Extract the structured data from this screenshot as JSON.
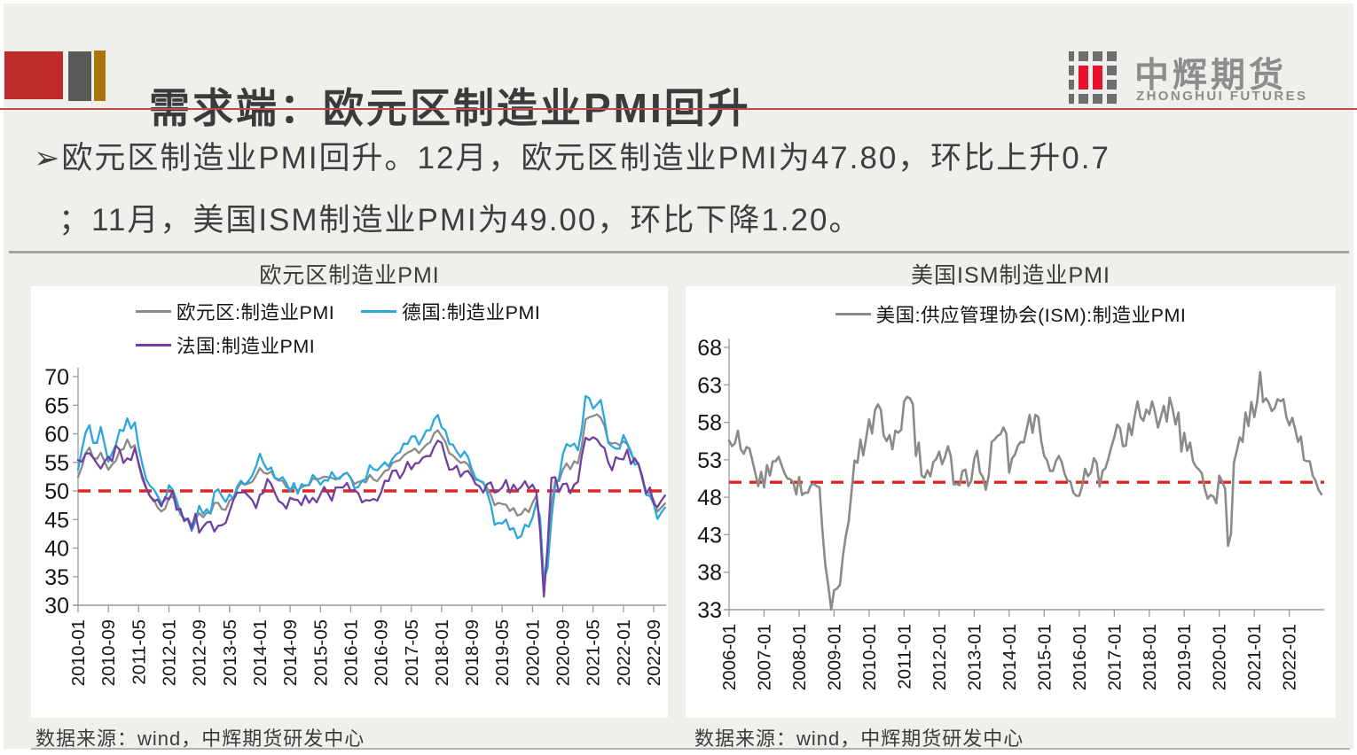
{
  "header": {
    "title": "需求端：欧元区制造业PMI回升",
    "logo_cn": "中辉期货",
    "logo_en": "ZHONGHUI FUTURES"
  },
  "bullet": {
    "line1": "➢欧元区制造业PMI回升。12月，欧元区制造业PMI为47.80，环比上升0.7",
    "line2": "；11月，美国ISM制造业PMI为49.00，环比下降1.20。"
  },
  "colors": {
    "deco_red": "#be2b2b",
    "deco_gray": "#595959",
    "deco_gold": "#a8760e",
    "header_rule_red": "#bf4a4a",
    "divider_gray": "#a3a3a3",
    "logo_gray": "#6e6e6e",
    "logo_red": "#e8112d",
    "axis_gray": "#9a9a9a",
    "baseline_red": "#e02222"
  },
  "chart_data": [
    {
      "type": "line",
      "title": "欧元区制造业PMI",
      "source": "数据来源：wind，中辉期货研发中心",
      "legend_position": "top",
      "grid": false,
      "ylim": [
        30,
        70
      ],
      "ytick_step": 5,
      "x_start": "2010-01",
      "x_freq": "monthly",
      "x_ticks": [
        "2010-01",
        "2010-09",
        "2011-05",
        "2012-01",
        "2012-09",
        "2013-05",
        "2014-01",
        "2014-09",
        "2015-05",
        "2016-01",
        "2016-09",
        "2017-05",
        "2018-01",
        "2018-09",
        "2019-05",
        "2020-01",
        "2020-09",
        "2021-05",
        "2022-01",
        "2022-09"
      ],
      "x_tick_every": 8,
      "baseline_value": 50,
      "baseline_color": "#e02222",
      "series": [
        {
          "name": "欧元区:制造业PMI",
          "color": "#8a8a8a",
          "values": [
            52.4,
            54.2,
            56.6,
            57.6,
            55.8,
            55.6,
            56.7,
            55.1,
            53.7,
            54.6,
            55.3,
            57.1,
            57.3,
            59.0,
            57.5,
            58.0,
            54.6,
            52.0,
            50.4,
            49.0,
            48.5,
            47.1,
            46.4,
            46.9,
            48.8,
            49.0,
            47.7,
            45.9,
            45.1,
            45.1,
            44.0,
            45.1,
            46.1,
            45.4,
            46.2,
            46.1,
            47.9,
            47.9,
            46.8,
            46.7,
            48.3,
            48.8,
            50.3,
            51.4,
            51.1,
            51.3,
            51.6,
            52.7,
            54.0,
            53.2,
            53.0,
            53.4,
            52.2,
            51.8,
            51.8,
            50.7,
            50.3,
            50.6,
            50.1,
            50.6,
            51.0,
            51.0,
            52.2,
            52.0,
            52.2,
            52.5,
            52.4,
            52.3,
            52.0,
            52.3,
            52.8,
            53.2,
            52.3,
            51.2,
            51.6,
            51.7,
            51.5,
            52.8,
            52.0,
            51.7,
            52.6,
            53.5,
            53.7,
            54.9,
            55.2,
            55.4,
            56.2,
            56.7,
            57.0,
            57.4,
            56.6,
            57.4,
            58.1,
            58.5,
            60.1,
            60.6,
            59.6,
            58.6,
            56.6,
            56.2,
            55.5,
            54.9,
            55.1,
            54.6,
            53.2,
            52.0,
            51.8,
            51.4,
            50.5,
            49.3,
            47.5,
            47.9,
            47.7,
            47.6,
            46.5,
            47.0,
            45.7,
            45.9,
            46.9,
            46.3,
            47.9,
            49.2,
            44.5,
            33.4,
            39.4,
            47.4,
            51.8,
            51.7,
            53.7,
            54.8,
            53.8,
            55.2,
            54.8,
            57.9,
            62.5,
            62.9,
            63.1,
            63.4,
            62.8,
            61.4,
            58.6,
            58.3,
            58.4,
            58.0,
            58.7,
            58.2,
            56.5,
            55.5,
            54.6,
            52.1,
            49.8,
            49.6,
            48.4,
            46.4,
            47.1,
            47.8
          ]
        },
        {
          "name": "德国:制造业PMI",
          "color": "#2ba7dd",
          "values": [
            53.7,
            57.2,
            60.2,
            61.5,
            58.4,
            58.4,
            61.2,
            58.2,
            55.1,
            56.6,
            58.1,
            60.7,
            60.5,
            62.7,
            60.9,
            62.0,
            57.7,
            54.6,
            52.0,
            50.9,
            50.3,
            49.1,
            47.9,
            48.4,
            51.0,
            50.2,
            48.4,
            46.2,
            45.2,
            45.0,
            43.0,
            44.7,
            47.4,
            46.0,
            46.8,
            46.0,
            49.8,
            50.3,
            49.0,
            48.1,
            49.4,
            48.6,
            50.7,
            51.8,
            51.1,
            51.7,
            52.7,
            54.3,
            56.5,
            54.8,
            53.7,
            54.1,
            52.3,
            52.0,
            52.4,
            51.4,
            49.9,
            51.4,
            49.5,
            51.2,
            50.9,
            51.1,
            52.8,
            52.1,
            51.1,
            51.9,
            51.8,
            53.3,
            52.3,
            52.1,
            52.9,
            53.2,
            52.3,
            50.5,
            50.7,
            51.8,
            52.1,
            54.5,
            53.8,
            53.6,
            54.3,
            55.0,
            54.3,
            55.6,
            56.4,
            56.8,
            58.3,
            58.2,
            59.5,
            59.6,
            58.1,
            59.3,
            60.6,
            60.6,
            62.5,
            63.3,
            61.1,
            60.6,
            58.2,
            58.1,
            56.9,
            55.9,
            56.9,
            55.9,
            53.7,
            52.2,
            51.8,
            51.5,
            49.7,
            47.6,
            44.1,
            44.4,
            44.3,
            45.0,
            43.2,
            43.5,
            41.7,
            42.1,
            44.1,
            43.7,
            45.3,
            48.0,
            45.4,
            34.5,
            36.6,
            45.2,
            51.0,
            52.2,
            56.4,
            58.2,
            57.8,
            58.3,
            57.1,
            60.7,
            66.6,
            66.2,
            64.4,
            65.1,
            65.9,
            62.6,
            58.4,
            57.8,
            57.4,
            57.4,
            59.8,
            58.4,
            56.9,
            54.6,
            54.8,
            52.0,
            49.3,
            49.1,
            47.8,
            45.1,
            46.2,
            47.1
          ]
        },
        {
          "name": "法国:制造业PMI",
          "color": "#71409f",
          "values": [
            55.4,
            55.1,
            56.5,
            56.6,
            55.8,
            54.8,
            53.9,
            55.1,
            56.0,
            55.2,
            57.9,
            57.2,
            54.9,
            55.7,
            55.4,
            57.5,
            54.9,
            52.5,
            50.5,
            49.1,
            48.2,
            48.5,
            47.3,
            48.9,
            48.5,
            50.0,
            46.7,
            46.9,
            44.7,
            45.2,
            43.4,
            46.0,
            42.7,
            43.7,
            44.5,
            44.6,
            42.9,
            43.9,
            44.0,
            44.4,
            46.4,
            48.4,
            49.7,
            49.7,
            49.8,
            49.1,
            48.4,
            47.0,
            49.3,
            49.7,
            52.1,
            51.2,
            49.6,
            48.2,
            47.8,
            46.9,
            48.8,
            48.5,
            48.4,
            47.5,
            49.2,
            47.9,
            48.8,
            48.0,
            49.4,
            50.7,
            49.6,
            48.3,
            50.6,
            50.6,
            50.6,
            51.4,
            50.0,
            50.2,
            49.6,
            48.0,
            48.4,
            48.3,
            48.6,
            48.3,
            49.7,
            51.8,
            51.7,
            53.5,
            53.6,
            52.2,
            53.3,
            55.1,
            53.8,
            54.8,
            54.9,
            55.8,
            56.1,
            56.1,
            57.7,
            58.8,
            58.4,
            55.9,
            53.7,
            53.8,
            54.4,
            52.5,
            53.3,
            53.5,
            52.5,
            51.2,
            50.8,
            49.7,
            51.2,
            51.5,
            49.7,
            50.0,
            50.6,
            51.9,
            49.7,
            51.1,
            50.1,
            50.7,
            51.7,
            50.4,
            51.1,
            49.8,
            43.2,
            31.5,
            40.6,
            52.3,
            52.4,
            49.8,
            51.2,
            51.3,
            49.6,
            51.1,
            51.6,
            56.1,
            59.3,
            58.9,
            59.4,
            59.0,
            58.0,
            57.5,
            55.0,
            53.6,
            55.9,
            55.6,
            55.5,
            57.2,
            54.7,
            55.7,
            54.6,
            52.5,
            49.5,
            50.6,
            47.7,
            47.2,
            48.3,
            49.2
          ]
        }
      ]
    },
    {
      "type": "line",
      "title": "美国ISM制造业PMI",
      "source": "数据来源：wind，中辉期货研发中心",
      "legend_position": "top",
      "grid": false,
      "ylim": [
        33,
        68
      ],
      "ytick_step": 5,
      "x_start": "2006-01",
      "x_freq": "monthly",
      "x_ticks": [
        "2006-01",
        "2007-01",
        "2008-01",
        "2009-01",
        "2010-01",
        "2011-01",
        "2012-01",
        "2013-01",
        "2014-01",
        "2015-01",
        "2016-01",
        "2017-01",
        "2018-01",
        "2019-01",
        "2020-01",
        "2021-01",
        "2022-01"
      ],
      "x_tick_every": 12,
      "baseline_value": 50,
      "baseline_color": "#e02222",
      "series": [
        {
          "name": "美国:供应管理协会(ISM):制造业PMI",
          "color": "#8a8a8a",
          "values": [
            55.6,
            54.8,
            55.2,
            56.9,
            54.4,
            53.8,
            54.7,
            54.5,
            52.9,
            51.2,
            49.5,
            51.4,
            49.3,
            52.3,
            50.9,
            52.8,
            52.8,
            53.4,
            52.3,
            51.2,
            50.5,
            50.4,
            50.0,
            48.4,
            50.7,
            48.3,
            48.6,
            48.6,
            49.6,
            49.8,
            49.5,
            49.3,
            43.5,
            38.9,
            36.2,
            32.9,
            35.6,
            35.8,
            36.3,
            40.1,
            42.8,
            44.8,
            48.9,
            52.9,
            52.6,
            55.7,
            53.6,
            55.9,
            58.4,
            56.5,
            59.6,
            60.4,
            59.7,
            56.2,
            55.5,
            56.3,
            54.4,
            56.9,
            56.6,
            57.0,
            60.8,
            61.4,
            61.2,
            60.4,
            53.5,
            55.3,
            50.9,
            50.6,
            51.6,
            50.8,
            52.7,
            53.1,
            54.1,
            52.4,
            53.4,
            54.8,
            53.5,
            49.7,
            49.8,
            49.6,
            51.5,
            51.7,
            49.5,
            50.2,
            53.1,
            54.2,
            51.3,
            50.7,
            49.0,
            50.9,
            55.4,
            55.7,
            56.2,
            56.4,
            57.3,
            56.5,
            51.3,
            53.2,
            53.7,
            54.9,
            55.4,
            55.3,
            57.1,
            59.0,
            56.6,
            59.0,
            58.7,
            55.5,
            53.5,
            52.9,
            51.5,
            51.5,
            52.8,
            53.5,
            52.7,
            51.1,
            50.2,
            50.1,
            48.6,
            48.2,
            48.2,
            49.5,
            51.8,
            50.8,
            51.3,
            53.2,
            52.6,
            49.4,
            51.5,
            51.9,
            53.2,
            54.7,
            56.0,
            57.7,
            57.2,
            54.8,
            54.9,
            57.8,
            56.3,
            58.8,
            60.8,
            58.7,
            58.2,
            59.7,
            59.1,
            60.8,
            59.3,
            57.3,
            58.7,
            60.2,
            58.1,
            61.3,
            59.8,
            57.7,
            59.3,
            54.1,
            56.6,
            54.2,
            55.3,
            52.8,
            52.1,
            51.7,
            51.2,
            49.1,
            47.8,
            48.3,
            48.1,
            47.2,
            50.9,
            50.1,
            49.1,
            41.5,
            43.1,
            52.6,
            54.2,
            56.0,
            55.4,
            59.3,
            57.5,
            60.7,
            58.7,
            60.8,
            64.7,
            60.7,
            61.2,
            60.6,
            59.5,
            59.9,
            61.1,
            60.8,
            61.1,
            58.7,
            57.6,
            58.6,
            57.1,
            55.4,
            56.1,
            53.0,
            52.8,
            52.8,
            50.9,
            50.2,
            49.0,
            48.4
          ]
        }
      ]
    }
  ]
}
